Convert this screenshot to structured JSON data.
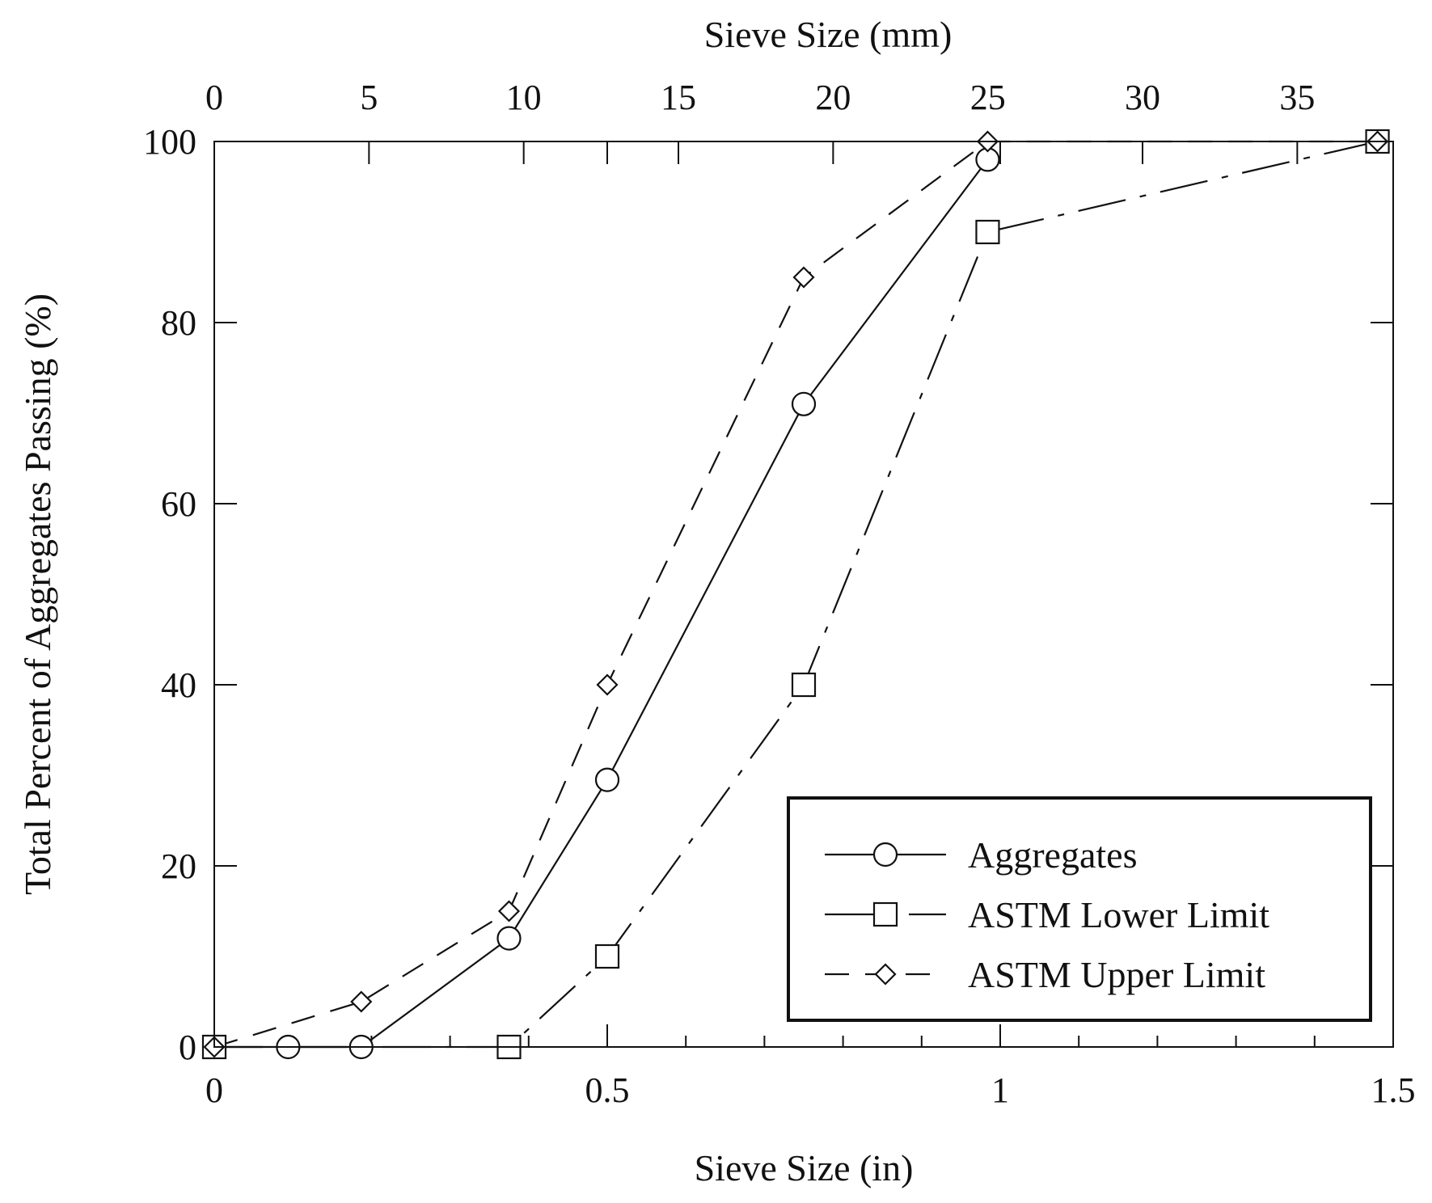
{
  "chart_data": {
    "type": "line",
    "xlabel": "Sieve Size (in)",
    "x2label": "Sieve Size (mm)",
    "ylabel": "Total Percent of Aggregates Passing (%)",
    "xlim": [
      0,
      1.5
    ],
    "x2lim": [
      0,
      38.1
    ],
    "ylim": [
      0,
      100
    ],
    "x_ticks": [
      "0",
      "0.5",
      "1",
      "1.5"
    ],
    "x2_ticks": [
      "0",
      "5",
      "10",
      "15",
      "20",
      "25",
      "30",
      "35"
    ],
    "y_ticks": [
      "0",
      "20",
      "40",
      "60",
      "80",
      "100"
    ],
    "grid": false,
    "legend_position": "bottom-right",
    "series": [
      {
        "name": "Aggregates",
        "marker": "circle",
        "line": "solid",
        "x": [
          0,
          0.094,
          0.187,
          0.375,
          0.5,
          0.75,
          0.984
        ],
        "y": [
          0,
          0,
          0,
          12,
          29.5,
          71,
          98
        ]
      },
      {
        "name": "ASTM Lower Limit",
        "marker": "square",
        "line": "long-dash",
        "x": [
          0,
          0.375,
          0.5,
          0.75,
          0.984,
          1.48
        ],
        "y": [
          0,
          0,
          10,
          40,
          90,
          100
        ]
      },
      {
        "name": "ASTM Upper Limit",
        "marker": "diamond",
        "line": "dash",
        "x": [
          0,
          0.187,
          0.375,
          0.5,
          0.75,
          0.984,
          1.48
        ],
        "y": [
          0,
          5,
          15,
          40,
          85,
          100,
          100
        ]
      }
    ]
  }
}
